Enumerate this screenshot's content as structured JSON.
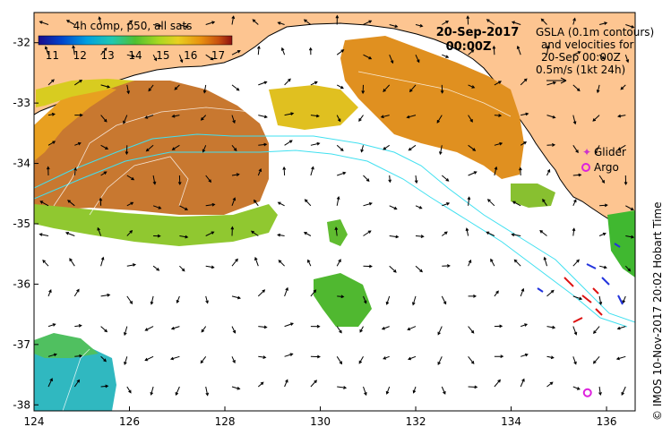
{
  "colorbar": {
    "title": "4h comp, p50, all sats",
    "ticks": [
      "11",
      "12",
      "13",
      "14",
      "15",
      "16",
      "17"
    ],
    "tick_values": [
      11,
      12,
      13,
      14,
      15,
      16,
      17
    ],
    "range": [
      10.5,
      17.5
    ],
    "colors": [
      "#1a0a8c",
      "#0044cc",
      "#00a0e0",
      "#20c8b0",
      "#50c030",
      "#a8d820",
      "#e8d020",
      "#e89010",
      "#c85010",
      "#8c1010"
    ]
  },
  "datetime": {
    "date": "20-Sep-2017",
    "time": "00:00Z"
  },
  "gsla_note": {
    "line1": "GSLA (0.1m contours)",
    "line2": "and velocities for",
    "line3": "20-Sep 00:00Z",
    "line4": "0.5m/s (1kt 24h)"
  },
  "legend": {
    "glider_label": "Glider",
    "argo_label": "Argo",
    "glider_color": "#cc33cc",
    "argo_color": "#dd22dd"
  },
  "credit": "© IMOS 10-Nov-2017 20:02 Hobart Time",
  "axes": {
    "x_ticks": [
      "124",
      "126",
      "128",
      "130",
      "132",
      "134",
      "136"
    ],
    "x_values": [
      124,
      126,
      128,
      130,
      132,
      134,
      136
    ],
    "x_range": [
      124,
      136.6
    ],
    "y_ticks": [
      "-32",
      "-33",
      "-34",
      "-35",
      "-36",
      "-37",
      "-38"
    ],
    "y_values": [
      -32,
      -33,
      -34,
      -35,
      -36,
      -37,
      -38
    ],
    "y_range": [
      -38.1,
      -31.5
    ]
  },
  "colors": {
    "land": "#fdc591",
    "ocean": "#ffffff",
    "contour": "#40e0f0",
    "arrow": "#000000"
  },
  "markers": {
    "argo": {
      "lon": 135.6,
      "lat": -37.8
    }
  }
}
